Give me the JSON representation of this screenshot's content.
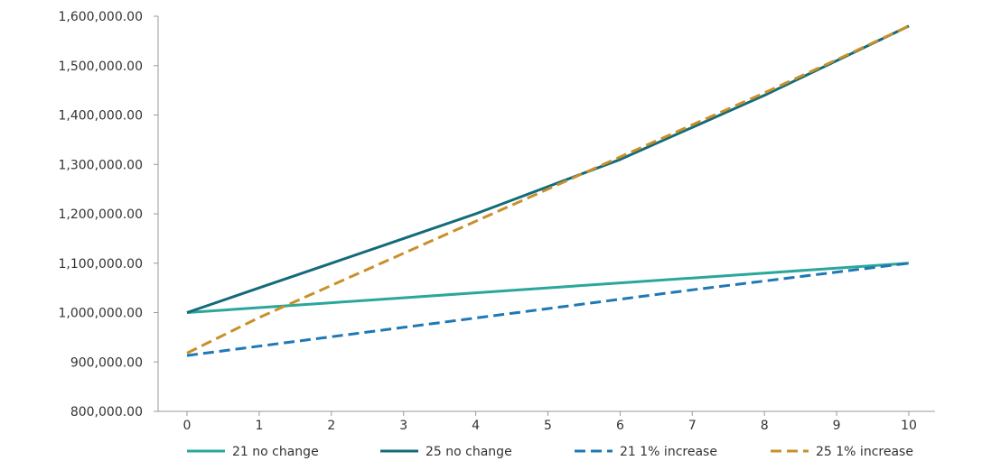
{
  "chart_data": {
    "type": "line",
    "title": "",
    "xlabel": "",
    "ylabel": "",
    "x": [
      0,
      1,
      2,
      3,
      4,
      5,
      6,
      7,
      8,
      9,
      10
    ],
    "xlim": [
      0,
      10
    ],
    "ylim": [
      800000,
      1600000
    ],
    "x_ticks": [
      "0",
      "1",
      "2",
      "3",
      "4",
      "5",
      "6",
      "7",
      "8",
      "9",
      "10"
    ],
    "y_ticks": [
      800000,
      900000,
      1000000,
      1100000,
      1200000,
      1300000,
      1400000,
      1500000,
      1600000
    ],
    "y_tick_labels": [
      "800,000.00",
      "900,000.00",
      "1,000,000.00",
      "1,100,000.00",
      "1,200,000.00",
      "1,300,000.00",
      "1,400,000.00",
      "1,500,000.00",
      "1,600,000.00"
    ],
    "grid": false,
    "legend_position": "bottom",
    "series": [
      {
        "name": "21 no change",
        "color": "#2aa79b",
        "dashed": false,
        "values": [
          1000000,
          1010000,
          1020000,
          1030000,
          1040000,
          1050000,
          1060000,
          1070000,
          1080000,
          1090000,
          1100000
        ]
      },
      {
        "name": "25 no change",
        "color": "#136b7a",
        "dashed": false,
        "values": [
          1000000,
          1050000,
          1100000,
          1150000,
          1200000,
          1255000,
          1310000,
          1375000,
          1440000,
          1510000,
          1580000
        ]
      },
      {
        "name": "21 1% increase",
        "color": "#1f78b4",
        "dashed": true,
        "values": [
          913000,
          932000,
          951000,
          970000,
          989000,
          1008000,
          1027000,
          1046000,
          1064000,
          1082000,
          1100000
        ]
      },
      {
        "name": "25 1% increase",
        "color": "#c8902a",
        "dashed": true,
        "values": [
          918000,
          990000,
          1055000,
          1120000,
          1185000,
          1250000,
          1315000,
          1380000,
          1445000,
          1512000,
          1580000
        ]
      }
    ]
  }
}
